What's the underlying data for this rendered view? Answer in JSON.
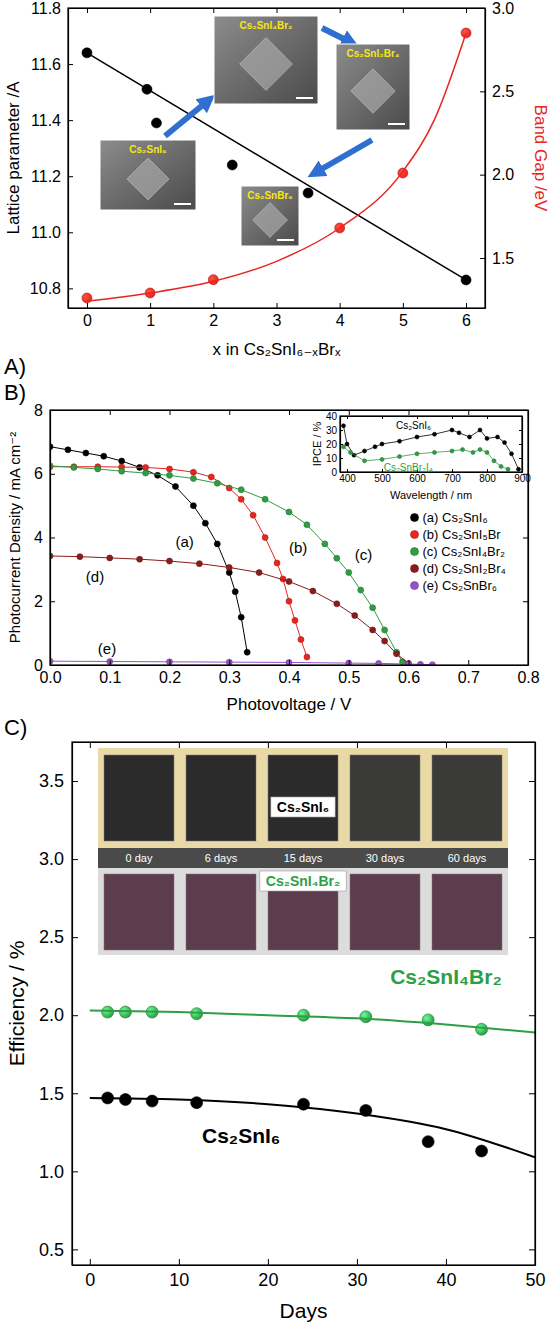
{
  "chart_data": [
    {
      "type": "scatter",
      "panel": "A)",
      "x_label": "x in Cs₂SnI₆₋ₓBrₓ",
      "y_label": "Lattice parameter /A",
      "y2_label": "Band Gap /eV",
      "xlim": [
        -0.3,
        6.3
      ],
      "xticks": [
        0,
        1,
        2,
        3,
        4,
        5,
        6
      ],
      "ylim": [
        10.73,
        11.8
      ],
      "yticks": [
        10.8,
        {
          "value": 11,
          "label": "11.0"
        },
        11.2,
        11.4,
        11.6,
        11.8
      ],
      "y2lim": [
        1.2,
        3.0
      ],
      "y2ticks": [
        1.5,
        {
          "value": 2,
          "label": "2.0"
        },
        2.5,
        {
          "value": 3,
          "label": "3.0"
        }
      ],
      "series": [
        {
          "type": "scatter",
          "marker": "circle",
          "color": "#000000",
          "x": [
            0,
            0.95,
            1.1,
            2.3,
            3.5,
            6
          ],
          "values": [
            11.64,
            11.51,
            11.39,
            11.24,
            11.14,
            10.83
          ]
        },
        {
          "type": "line",
          "color": "#000000",
          "x": [
            0,
            6
          ],
          "values": [
            11.64,
            10.83
          ]
        },
        {
          "type": "scatter",
          "marker": "circle",
          "axis": "y2",
          "color": "#e8251f",
          "x": [
            0,
            1,
            2,
            4,
            5,
            6
          ],
          "values": [
            1.26,
            1.29,
            1.37,
            1.68,
            2.01,
            2.85
          ]
        },
        {
          "type": "line",
          "axis": "y2",
          "color": "#e8251f",
          "x": [
            0,
            1,
            2,
            3,
            4,
            5,
            5.5,
            6
          ],
          "values": [
            1.24,
            1.29,
            1.36,
            1.48,
            1.68,
            2.02,
            2.33,
            2.85
          ]
        }
      ],
      "annotations": [
        {
          "text": "Cs₂SnI₆"
        },
        {
          "text": "Cs₂SnI₄Br₂"
        },
        {
          "text": "Cs₂SnI₂Br₄"
        },
        {
          "text": "Cs₂SnBr₆"
        }
      ]
    },
    {
      "type": "line",
      "panel": "B)",
      "x_label": "Photovoltage / V",
      "y_label": "Photocurrent Density / mA cm⁻²",
      "xlim": [
        0,
        0.8
      ],
      "xticks": [
        {
          "value": 0,
          "label": "0.0"
        },
        0.1,
        0.2,
        0.3,
        0.4,
        0.5,
        0.6,
        0.7,
        0.8
      ],
      "ylim": [
        0,
        8
      ],
      "yticks": [
        0,
        2,
        4,
        6,
        8
      ],
      "legend": "right",
      "series": [
        {
          "name": "(a) Cs₂SnI₆",
          "color": "#000000",
          "marker": "circle",
          "x": [
            0,
            0.03,
            0.06,
            0.09,
            0.12,
            0.15,
            0.18,
            0.21,
            0.24,
            0.26,
            0.28,
            0.3,
            0.31,
            0.32,
            0.33
          ],
          "values": [
            6.85,
            6.75,
            6.65,
            6.55,
            6.4,
            6.2,
            5.95,
            5.6,
            5.0,
            4.45,
            3.8,
            2.9,
            2.3,
            1.5,
            0.4
          ]
        },
        {
          "name": "(b) Cs₂SnI₅Br",
          "color": "#e8251f",
          "marker": "circle",
          "x": [
            0,
            0.04,
            0.08,
            0.12,
            0.16,
            0.2,
            0.24,
            0.27,
            0.3,
            0.32,
            0.34,
            0.36,
            0.38,
            0.39,
            0.4,
            0.41,
            0.42,
            0.43
          ],
          "values": [
            6.22,
            6.22,
            6.22,
            6.21,
            6.2,
            6.15,
            6.05,
            5.9,
            5.55,
            5.2,
            4.7,
            4.0,
            3.2,
            2.7,
            2.0,
            1.4,
            0.8,
            0.25
          ]
        },
        {
          "name": "(c) Cs₂SnI₄Br₂",
          "color": "#2e9e44",
          "marker": "circle",
          "x": [
            0,
            0.04,
            0.08,
            0.12,
            0.16,
            0.2,
            0.24,
            0.28,
            0.32,
            0.36,
            0.4,
            0.43,
            0.46,
            0.48,
            0.5,
            0.52,
            0.54,
            0.56,
            0.58,
            0.59
          ],
          "values": [
            6.25,
            6.2,
            6.15,
            6.08,
            6.02,
            5.95,
            5.85,
            5.7,
            5.5,
            5.2,
            4.8,
            4.4,
            3.8,
            3.35,
            2.9,
            2.35,
            1.8,
            1.1,
            0.4,
            0.1
          ]
        },
        {
          "name": "(d) Cs₂SnI₂Br₄",
          "color": "#8b1c1c",
          "marker": "circle",
          "x": [
            0,
            0.05,
            0.1,
            0.15,
            0.2,
            0.25,
            0.3,
            0.35,
            0.4,
            0.44,
            0.48,
            0.51,
            0.54,
            0.56,
            0.58,
            0.6
          ],
          "values": [
            3.42,
            3.4,
            3.36,
            3.32,
            3.26,
            3.18,
            3.06,
            2.9,
            2.62,
            2.32,
            1.92,
            1.55,
            1.1,
            0.75,
            0.35,
            0.05
          ]
        },
        {
          "name": "(e) Cs₂SnBr₆",
          "color": "#9b4fc8",
          "marker": "circle",
          "x": [
            0,
            0.1,
            0.2,
            0.3,
            0.4,
            0.5,
            0.55,
            0.6,
            0.62,
            0.64
          ],
          "values": [
            0.12,
            0.11,
            0.1,
            0.09,
            0.08,
            0.06,
            0.05,
            0.03,
            0.02,
            0.01
          ]
        }
      ],
      "annotations": [
        {
          "text": "(a)"
        },
        {
          "text": "(b)"
        },
        {
          "text": "(c)"
        },
        {
          "text": "(d)"
        },
        {
          "text": "(e)"
        }
      ]
    },
    {
      "type": "line",
      "x_label": "Wavelength / nm",
      "y_label": "IPCE / %",
      "xlim": [
        380,
        900
      ],
      "xticks": [
        400,
        500,
        600,
        700,
        800,
        900
      ],
      "ylim": [
        0,
        40
      ],
      "yticks": [
        0,
        10,
        20,
        30,
        40
      ],
      "series": [
        {
          "name": "Cs₂SnI₆",
          "color": "#000000",
          "marker": "circle",
          "x": [
            390,
            400,
            420,
            450,
            480,
            500,
            550,
            600,
            650,
            700,
            720,
            750,
            780,
            800,
            830,
            850,
            870,
            890
          ],
          "values": [
            33,
            20,
            12,
            15,
            18,
            20,
            22,
            25,
            27,
            30,
            28,
            25,
            30,
            24,
            25,
            21,
            13,
            2
          ]
        },
        {
          "name": "Cs₂SnBr₂I₄",
          "color": "#2e9e44",
          "marker": "circle",
          "x": [
            390,
            410,
            450,
            500,
            550,
            600,
            650,
            700,
            730,
            760,
            780,
            800,
            820,
            840,
            860
          ],
          "values": [
            18,
            14,
            8,
            9,
            11,
            13,
            14,
            15,
            16,
            14,
            16,
            14,
            8,
            4,
            2
          ]
        }
      ]
    },
    {
      "type": "scatter",
      "panel": "C)",
      "x_label": "Days",
      "y_label": "Efficiency / %",
      "xlim": [
        -2,
        50
      ],
      "xticks": [
        0,
        10,
        20,
        30,
        40,
        50
      ],
      "ylim": [
        0.4,
        3.75
      ],
      "yticks": [
        0.5,
        {
          "value": 1,
          "label": "1.0"
        },
        1.5,
        {
          "value": 2,
          "label": "2.0"
        },
        2.5,
        {
          "value": 3,
          "label": "3.0"
        },
        3.5
      ],
      "series": [
        {
          "name": "Cs₂SnI₄Br₂",
          "type": "scatter",
          "marker": "circle",
          "color": "#2e9e44",
          "x": [
            2,
            4,
            7,
            12,
            24,
            31,
            38,
            44
          ],
          "values": [
            2.02,
            2.02,
            2.02,
            2.01,
            2.0,
            1.99,
            1.97,
            1.91
          ]
        },
        {
          "name": "Cs₂SnI₆",
          "type": "scatter",
          "marker": "circle",
          "color": "#000000",
          "x": [
            2,
            4,
            7,
            12,
            24,
            31,
            38,
            44
          ],
          "values": [
            1.47,
            1.46,
            1.45,
            1.44,
            1.43,
            1.39,
            1.19,
            1.13
          ]
        },
        {
          "type": "line",
          "color": "#2e9e44",
          "x": [
            0,
            10,
            20,
            30,
            40,
            50
          ],
          "values": [
            2.03,
            2.02,
            2.0,
            1.98,
            1.94,
            1.89
          ]
        },
        {
          "type": "line",
          "color": "#000000",
          "x": [
            0,
            10,
            20,
            30,
            40,
            50
          ],
          "values": [
            1.47,
            1.46,
            1.43,
            1.37,
            1.27,
            1.09
          ]
        }
      ],
      "photo": {
        "samples": [
          "Cs₂SnI₆",
          "Cs₂SnI₄Br₂"
        ],
        "days": [
          "0 day",
          "6 days",
          "15 days",
          "30 days",
          "60 days"
        ]
      }
    }
  ]
}
